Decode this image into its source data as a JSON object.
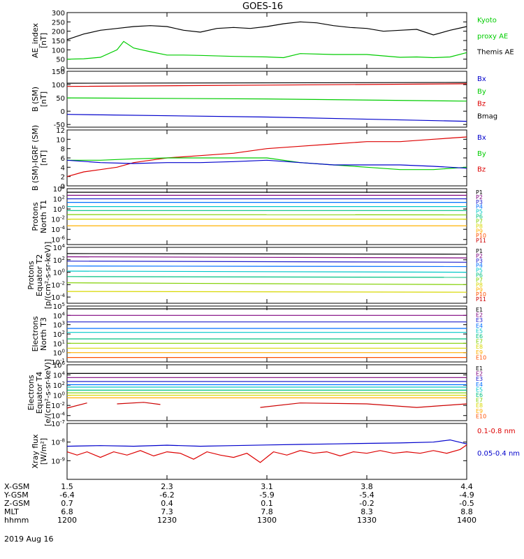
{
  "title": "GOES-16",
  "colors": {
    "black": "#000000",
    "red": "#dd0000",
    "green": "#00cc00",
    "blue": "#0000cc",
    "p": [
      "#000000",
      "#7f007f",
      "#2020cc",
      "#0070ff",
      "#00c8c8",
      "#00c080",
      "#80d000",
      "#d8d800",
      "#ffb000",
      "#ff5000",
      "#cc0000"
    ],
    "e": [
      "#000000",
      "#7f007f",
      "#2020cc",
      "#0070ff",
      "#00c8c8",
      "#00c080",
      "#80d000",
      "#d8d800",
      "#ffb000",
      "#ff5000",
      "#cc0000"
    ]
  },
  "chart_data": [
    {
      "type": "line",
      "ylabel": [
        "AE_index",
        "[nT]"
      ],
      "ylim": [
        0,
        300
      ],
      "yticks": [
        "0",
        "50",
        "100",
        "150",
        "200",
        "250",
        "300"
      ],
      "legend": [
        {
          "name": "Kyoto",
          "color": "#00cc00"
        },
        {
          "name": "proxy AE",
          "color": "#00cc00"
        },
        {
          "name": "Themis AE",
          "color": "#000000"
        }
      ],
      "series": [
        {
          "name": "Themis AE",
          "color": "#000000",
          "x": [
            1200,
            1205,
            1210,
            1215,
            1220,
            1225,
            1230,
            1235,
            1240,
            1245,
            1250,
            1255,
            1300,
            1305,
            1310,
            1315,
            1320,
            1325,
            1330,
            1335,
            1340,
            1345,
            1350,
            1355,
            1400
          ],
          "y": [
            155,
            185,
            205,
            215,
            225,
            230,
            225,
            205,
            195,
            215,
            220,
            215,
            225,
            240,
            250,
            245,
            230,
            220,
            215,
            200,
            205,
            210,
            180,
            205,
            225
          ]
        },
        {
          "name": "Kyoto proxy AE",
          "color": "#00cc00",
          "x": [
            1200,
            1205,
            1210,
            1215,
            1217,
            1220,
            1225,
            1230,
            1235,
            1240,
            1250,
            1300,
            1305,
            1310,
            1320,
            1330,
            1340,
            1345,
            1350,
            1355,
            1400
          ],
          "y": [
            50,
            52,
            60,
            100,
            145,
            110,
            90,
            72,
            72,
            70,
            65,
            62,
            58,
            80,
            75,
            75,
            60,
            62,
            58,
            62,
            85
          ]
        }
      ]
    },
    {
      "type": "line",
      "ylabel": [
        "B (SM)",
        "[nT]"
      ],
      "ylim": [
        -60,
        150
      ],
      "yticks": [
        "-50",
        "0",
        "50",
        "100",
        "150"
      ],
      "legend": [
        {
          "name": "Bx",
          "color": "#0000cc"
        },
        {
          "name": "By",
          "color": "#00cc00"
        },
        {
          "name": "Bz",
          "color": "#dd0000"
        },
        {
          "name": "Bmag",
          "color": "#000000"
        }
      ],
      "series": [
        {
          "name": "Bmag",
          "color": "#000000",
          "x": [
            1200,
            1400
          ],
          "y": [
            105,
            108
          ]
        },
        {
          "name": "Bz",
          "color": "#dd0000",
          "x": [
            1200,
            1300,
            1400
          ],
          "y": [
            93,
            98,
            103
          ]
        },
        {
          "name": "By",
          "color": "#00cc00",
          "x": [
            1200,
            1300,
            1400
          ],
          "y": [
            50,
            46,
            38
          ]
        },
        {
          "name": "Bx",
          "color": "#0000cc",
          "x": [
            1200,
            1300,
            1400
          ],
          "y": [
            -12,
            -22,
            -38
          ]
        }
      ]
    },
    {
      "type": "line",
      "ylabel": [
        "B (SM)-IGRF (SM)",
        "[nT]"
      ],
      "ylim": [
        0,
        12
      ],
      "yticks": [
        "0",
        "2",
        "4",
        "6",
        "8",
        "10",
        "12"
      ],
      "legend": [
        {
          "name": "Bx",
          "color": "#0000cc"
        },
        {
          "name": "By",
          "color": "#00cc00"
        },
        {
          "name": "Bz",
          "color": "#dd0000"
        }
      ],
      "series": [
        {
          "name": "Bz",
          "color": "#dd0000",
          "x": [
            1200,
            1205,
            1210,
            1215,
            1220,
            1225,
            1230,
            1240,
            1250,
            1300,
            1310,
            1320,
            1330,
            1340,
            1350,
            1400
          ],
          "y": [
            2,
            3,
            3.5,
            4,
            5,
            5.5,
            6,
            6.5,
            7,
            8,
            8.5,
            9,
            9.5,
            9.5,
            10,
            10.5
          ]
        },
        {
          "name": "By",
          "color": "#00cc00",
          "x": [
            1200,
            1210,
            1220,
            1230,
            1240,
            1250,
            1300,
            1310,
            1320,
            1330,
            1340,
            1350,
            1400
          ],
          "y": [
            5.5,
            5.5,
            5.8,
            6,
            6,
            6,
            6,
            5,
            4.5,
            4,
            3.5,
            3.5,
            4
          ]
        },
        {
          "name": "Bx",
          "color": "#0000cc",
          "x": [
            1200,
            1210,
            1220,
            1230,
            1240,
            1250,
            1300,
            1310,
            1320,
            1330,
            1340,
            1350,
            1400
          ],
          "y": [
            5.5,
            5,
            4.8,
            5,
            5,
            5.2,
            5.5,
            5,
            4.5,
            4.5,
            4.5,
            4.2,
            3.8
          ]
        }
      ]
    },
    {
      "type": "line",
      "ylabel": [
        "Protons",
        "North T1"
      ],
      "yscale": "log",
      "ylim": [
        1e-07,
        10000.0
      ],
      "yticks": [
        "10^-6",
        "10^-4",
        "10^-2",
        "10^0",
        "10^2",
        "10^4"
      ],
      "legend": [
        "P1",
        "P2",
        "P3",
        "P4",
        "P5",
        "P6",
        "P7",
        "P8",
        "P9",
        "P10",
        "P11"
      ],
      "series": [
        {
          "name": "P1",
          "y": [
            2000,
            2000
          ]
        },
        {
          "name": "P2",
          "y": [
            500,
            500
          ]
        },
        {
          "name": "P3",
          "y": [
            100,
            100
          ]
        },
        {
          "name": "P4",
          "y": [
            20,
            20
          ]
        },
        {
          "name": "P5",
          "y": [
            3,
            3
          ]
        },
        {
          "name": "P6",
          "y": [
            0.5,
            0.5
          ]
        },
        {
          "name": "P7",
          "y": [
            0.08,
            0.07
          ]
        },
        {
          "name": "P8",
          "y": [
            0.01,
            0.01
          ]
        },
        {
          "name": "P9",
          "y": [
            0.0005,
            0.0005
          ]
        }
      ],
      "x": [
        1200,
        1400
      ]
    },
    {
      "type": "line",
      "ylabel": [
        "Protons",
        "Equator T2",
        "[p/(cm²-s-sr-keV)]"
      ],
      "yscale": "log",
      "ylim": [
        1e-05,
        10000.0
      ],
      "yticks": [
        "10^-4",
        "10^-2",
        "10^0",
        "10^2",
        "10^4"
      ],
      "legend": [
        "P1",
        "P2",
        "P3",
        "P4",
        "P5",
        "P6",
        "P7",
        "P8",
        "P9",
        "P10",
        "P11"
      ],
      "series": [
        {
          "name": "P1",
          "y": [
            1000,
            800
          ]
        },
        {
          "name": "P2",
          "y": [
            300,
            200
          ]
        },
        {
          "name": "P3",
          "y": [
            60,
            40
          ]
        },
        {
          "name": "P4",
          "y": [
            10,
            8
          ]
        },
        {
          "name": "P5",
          "y": [
            1.5,
            1
          ]
        },
        {
          "name": "P6",
          "y": [
            0.2,
            0.15
          ]
        },
        {
          "name": "P7",
          "y": [
            0.02,
            0.01
          ]
        },
        {
          "name": "P8",
          "y": [
            0.0008,
            0.0006
          ]
        }
      ],
      "x": [
        1200,
        1400
      ]
    },
    {
      "type": "line",
      "ylabel": [
        "Electrons",
        "North T3"
      ],
      "yscale": "log",
      "ylim": [
        0.1,
        100000.0
      ],
      "yticks": [
        "10^-1",
        "10^0",
        "10^1",
        "10^2",
        "10^3",
        "10^4",
        "10^5"
      ],
      "legend": [
        "E1",
        "E2",
        "E3",
        "E4",
        "E5",
        "E6",
        "E7",
        "E8",
        "E9",
        "E10"
      ],
      "series": [
        {
          "name": "E1",
          "y": [
            50000,
            50000
          ]
        },
        {
          "name": "E2",
          "y": [
            10000,
            10000
          ]
        },
        {
          "name": "E3",
          "y": [
            2000,
            2000
          ]
        },
        {
          "name": "E4",
          "y": [
            400,
            400
          ]
        },
        {
          "name": "E5",
          "y": [
            150,
            150
          ]
        },
        {
          "name": "E6",
          "y": [
            30,
            30
          ]
        },
        {
          "name": "E7",
          "y": [
            10,
            10
          ]
        },
        {
          "name": "E8",
          "y": [
            3,
            3
          ]
        },
        {
          "name": "E9",
          "y": [
            1,
            1
          ]
        },
        {
          "name": "E10",
          "y": [
            0.3,
            0.3
          ]
        }
      ],
      "x": [
        1200,
        1400
      ]
    },
    {
      "type": "line",
      "ylabel": [
        "Electrons",
        "Equator T4",
        "[e/(cm²-s-sr-keV)]"
      ],
      "yscale": "log",
      "ylim": [
        1e-05,
        1000000.0
      ],
      "yticks": [
        "10^-4",
        "10^-2",
        "10^0",
        "10^2",
        "10^4",
        "10^6"
      ],
      "legend": [
        "E1",
        "E2",
        "E3",
        "E4",
        "E5",
        "E6",
        "E7",
        "E8",
        "E9",
        "E10"
      ],
      "series": [
        {
          "name": "E1",
          "y": [
            20000,
            20000
          ]
        },
        {
          "name": "E2",
          "y": [
            3000,
            3000
          ]
        },
        {
          "name": "E3",
          "y": [
            500,
            500
          ]
        },
        {
          "name": "E4",
          "y": [
            120,
            120
          ]
        },
        {
          "name": "E5",
          "y": [
            40,
            40
          ]
        },
        {
          "name": "E6",
          "y": [
            10,
            10
          ]
        },
        {
          "name": "E7",
          "y": [
            3,
            3
          ]
        },
        {
          "name": "E8",
          "y": [
            1,
            1
          ]
        },
        {
          "name": "E9",
          "y": [
            0.3,
            0.3
          ]
        }
      ],
      "x": [
        1200,
        1400
      ],
      "segments": [
        {
          "name": "E10",
          "x": [
            1200,
            1206
          ],
          "y": [
            0.003,
            0.03
          ]
        },
        {
          "name": "E10",
          "x": [
            1215,
            1223,
            1228
          ],
          "y": [
            0.02,
            0.04,
            0.015
          ]
        },
        {
          "name": "E10",
          "x": [
            1258,
            1310,
            1330,
            1345,
            1400
          ],
          "y": [
            0.004,
            0.03,
            0.02,
            0.004,
            0.02
          ]
        }
      ]
    },
    {
      "type": "line",
      "ylabel": [
        "Xray flux",
        "[W/m²]"
      ],
      "yscale": "log",
      "ylim": [
        1e-10,
        1e-07
      ],
      "yticks": [
        "10^-9",
        "10^-8",
        "10^-7"
      ],
      "legend": [
        {
          "name": "0.1-0.8 nm",
          "color": "#dd0000"
        },
        {
          "name": "0.05-0.4 nm",
          "color": "#0000cc"
        }
      ],
      "series": [
        {
          "name": "0.05-0.4 nm",
          "color": "#0000cc",
          "x": [
            1200,
            1210,
            1220,
            1230,
            1240,
            1250,
            1300,
            1310,
            1320,
            1330,
            1340,
            1350,
            1355,
            1400
          ],
          "y": [
            6e-09,
            6.5e-09,
            6e-09,
            6.8e-09,
            6e-09,
            6.5e-09,
            7e-09,
            7.5e-09,
            8e-09,
            8.5e-09,
            9e-09,
            1e-08,
            1.3e-08,
            8e-09
          ]
        },
        {
          "name": "0.1-0.8 nm",
          "color": "#dd0000",
          "x": [
            1200,
            1203,
            1206,
            1210,
            1214,
            1218,
            1222,
            1226,
            1230,
            1234,
            1238,
            1242,
            1246,
            1250,
            1254,
            1258,
            1302,
            1306,
            1310,
            1314,
            1318,
            1322,
            1326,
            1330,
            1334,
            1338,
            1342,
            1346,
            1350,
            1354,
            1358,
            1400
          ],
          "y": [
            3e-09,
            2e-09,
            3e-09,
            1.5e-09,
            3e-09,
            2e-09,
            3.5e-09,
            1.8e-09,
            3e-09,
            2.5e-09,
            1.2e-09,
            3e-09,
            2e-09,
            1.5e-09,
            2.5e-09,
            8e-10,
            3e-09,
            2e-09,
            3.5e-09,
            2.5e-09,
            3e-09,
            1.8e-09,
            3e-09,
            2.5e-09,
            3.5e-09,
            2.5e-09,
            3e-09,
            2.5e-09,
            3.5e-09,
            2.5e-09,
            4e-09,
            7e-09
          ]
        }
      ]
    }
  ],
  "x_axis": {
    "rows": [
      {
        "label": "X-GSM",
        "values": [
          "1.5",
          "2.3",
          "3.1",
          "3.8",
          "4.4"
        ]
      },
      {
        "label": "Y-GSM",
        "values": [
          "-6.4",
          "-6.2",
          "-5.9",
          "-5.4",
          "-4.9"
        ]
      },
      {
        "label": "Z-GSM",
        "values": [
          "0.7",
          "0.4",
          "0.1",
          "-0.2",
          "-0.5"
        ]
      },
      {
        "label": "MLT",
        "values": [
          "6.8",
          "7.3",
          "7.8",
          "8.3",
          "8.8"
        ]
      },
      {
        "label": "hhmm",
        "values": [
          "1200",
          "1230",
          "1300",
          "1330",
          "1400"
        ]
      }
    ],
    "date": "2019 Aug 16"
  }
}
